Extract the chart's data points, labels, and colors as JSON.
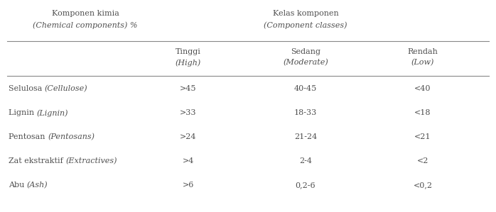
{
  "header_left_line1": "Komponen kimia",
  "header_left_line2": "(Chemical components) %",
  "header_right_line1": "Kelas komponen",
  "header_right_line2": "(Component classes)",
  "col_headers": [
    [
      "Tinggi",
      "(High)"
    ],
    [
      "Sedang",
      "(Moderate)"
    ],
    [
      "Rendah",
      "(Low)"
    ]
  ],
  "rows": [
    {
      "label_normal": "Selulosa ",
      "label_italic": "(Cellulose)",
      "high": ">45",
      "moderate": "40-45",
      "low": "<40"
    },
    {
      "label_normal": "Lignin ",
      "label_italic": "(Lignin)",
      "high": ">33",
      "moderate": "18-33",
      "low": "<18"
    },
    {
      "label_normal": "Pentosan ",
      "label_italic": "(Pentosans)",
      "high": ">24",
      "moderate": "21-24",
      "low": "<21"
    },
    {
      "label_normal": "Zat ekstraktif ",
      "label_italic": "(Extractives)",
      "high": ">4",
      "moderate": "2-4",
      "low": "<2"
    },
    {
      "label_normal": "Abu ",
      "label_italic": "(Ash)",
      "high": ">6",
      "moderate": "0,2-6",
      "low": "<0,2"
    }
  ],
  "bg_color": "#ffffff",
  "text_color": "#505050",
  "line_color": "#888888",
  "font_size": 8.0
}
